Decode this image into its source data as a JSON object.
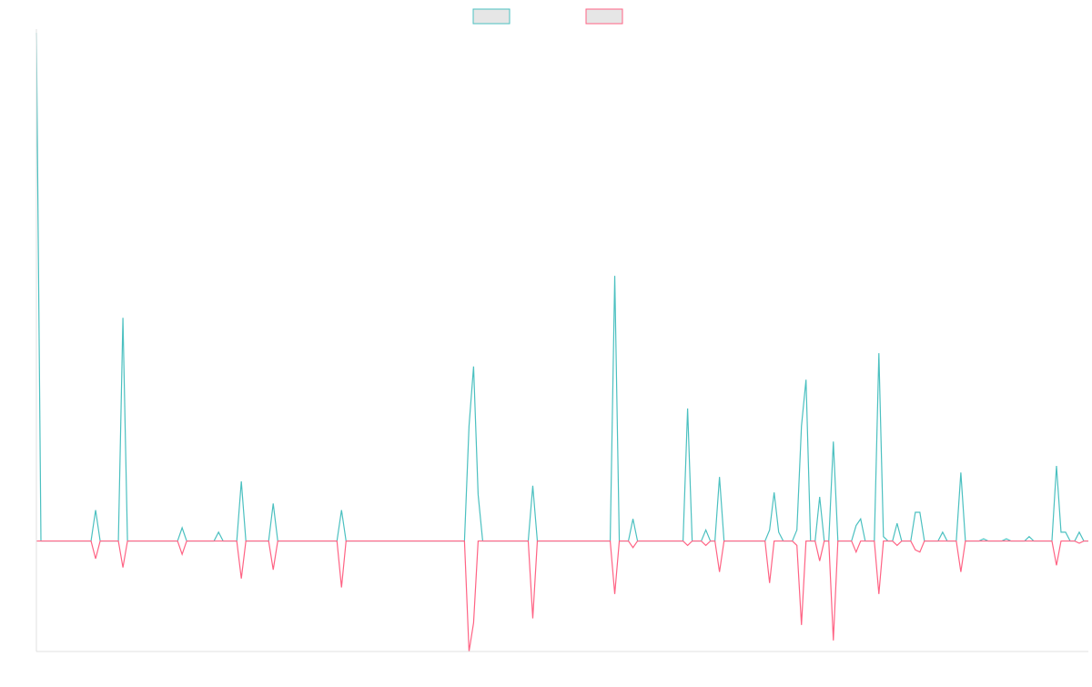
{
  "chart_data": {
    "type": "line",
    "title": "",
    "xlabel": "",
    "ylabel": "",
    "grid": false,
    "legend_placement": "top-center",
    "ylim": [
      -5,
      23
    ],
    "y_baseline": 0,
    "series": [
      {
        "color": "#4bc0c0",
        "fill": "#e6e6e6",
        "points": [
          [
            0,
            23
          ],
          [
            1,
            0
          ],
          [
            12,
            0
          ],
          [
            13,
            1.4
          ],
          [
            14,
            0
          ],
          [
            18,
            0
          ],
          [
            19,
            10.1
          ],
          [
            20,
            0
          ],
          [
            31,
            0
          ],
          [
            32,
            0.6
          ],
          [
            33,
            0
          ],
          [
            39,
            0
          ],
          [
            40,
            0.4
          ],
          [
            41,
            0
          ],
          [
            44,
            0
          ],
          [
            45,
            2.7
          ],
          [
            46,
            0
          ],
          [
            51,
            0
          ],
          [
            52,
            1.7
          ],
          [
            53,
            0
          ],
          [
            66,
            0
          ],
          [
            67,
            1.4
          ],
          [
            68,
            0
          ],
          [
            94,
            0
          ],
          [
            95,
            5.2
          ],
          [
            96,
            7.9
          ],
          [
            97,
            2.1
          ],
          [
            98,
            0
          ],
          [
            108,
            0
          ],
          [
            109,
            2.5
          ],
          [
            110,
            0
          ],
          [
            126,
            0
          ],
          [
            127,
            12.0
          ],
          [
            128,
            0
          ],
          [
            130,
            0
          ],
          [
            131,
            1.0
          ],
          [
            132,
            0
          ],
          [
            142,
            0
          ],
          [
            143,
            6.0
          ],
          [
            144,
            0
          ],
          [
            146,
            0
          ],
          [
            147,
            0.5
          ],
          [
            148,
            0
          ],
          [
            149,
            0
          ],
          [
            150,
            2.9
          ],
          [
            151,
            0
          ],
          [
            160,
            0
          ],
          [
            161,
            0.5
          ],
          [
            162,
            2.2
          ],
          [
            163,
            0.4
          ],
          [
            164,
            0
          ],
          [
            166,
            0
          ],
          [
            167,
            0.5
          ],
          [
            168,
            5.2
          ],
          [
            169,
            7.3
          ],
          [
            170,
            0
          ],
          [
            171,
            0
          ],
          [
            172,
            2.0
          ],
          [
            173,
            0
          ],
          [
            174,
            0
          ],
          [
            175,
            4.5
          ],
          [
            176,
            0
          ],
          [
            179,
            0
          ],
          [
            180,
            0.7
          ],
          [
            181,
            1.0
          ],
          [
            182,
            0
          ],
          [
            184,
            0
          ],
          [
            185,
            8.5
          ],
          [
            186,
            0.2
          ],
          [
            187,
            0
          ],
          [
            188,
            0
          ],
          [
            189,
            0.8
          ],
          [
            190,
            0
          ],
          [
            192,
            0
          ],
          [
            193,
            1.3
          ],
          [
            194,
            1.3
          ],
          [
            195,
            0
          ],
          [
            198,
            0
          ],
          [
            199,
            0.4
          ],
          [
            200,
            0
          ],
          [
            202,
            0
          ],
          [
            203,
            3.1
          ],
          [
            204,
            0
          ],
          [
            207,
            0
          ],
          [
            208,
            0.1
          ],
          [
            209,
            0
          ],
          [
            212,
            0
          ],
          [
            213,
            0.1
          ],
          [
            214,
            0
          ],
          [
            217,
            0
          ],
          [
            218,
            0.2
          ],
          [
            219,
            0
          ],
          [
            223,
            0
          ],
          [
            224,
            3.4
          ],
          [
            225,
            0.4
          ],
          [
            226,
            0.4
          ],
          [
            227,
            0
          ],
          [
            228,
            0
          ],
          [
            229,
            0.4
          ],
          [
            230,
            0
          ],
          [
            231,
            0
          ]
        ]
      },
      {
        "color": "#ff6384",
        "fill": "#e6e6e6",
        "points": [
          [
            0,
            0
          ],
          [
            12,
            0
          ],
          [
            13,
            -0.8
          ],
          [
            14,
            0
          ],
          [
            18,
            0
          ],
          [
            19,
            -1.2
          ],
          [
            20,
            0
          ],
          [
            31,
            0
          ],
          [
            32,
            -0.6
          ],
          [
            33,
            0
          ],
          [
            44,
            0
          ],
          [
            45,
            -1.7
          ],
          [
            46,
            0
          ],
          [
            51,
            0
          ],
          [
            52,
            -1.3
          ],
          [
            53,
            0
          ],
          [
            66,
            0
          ],
          [
            67,
            -2.1
          ],
          [
            68,
            0
          ],
          [
            94,
            0
          ],
          [
            95,
            -5.0
          ],
          [
            96,
            -3.7
          ],
          [
            97,
            0
          ],
          [
            108,
            0
          ],
          [
            109,
            -3.5
          ],
          [
            110,
            0
          ],
          [
            126,
            0
          ],
          [
            127,
            -2.4
          ],
          [
            128,
            0
          ],
          [
            130,
            0
          ],
          [
            131,
            -0.3
          ],
          [
            132,
            0
          ],
          [
            142,
            0
          ],
          [
            143,
            -0.2
          ],
          [
            144,
            0
          ],
          [
            146,
            0
          ],
          [
            147,
            -0.2
          ],
          [
            148,
            0
          ],
          [
            149,
            0
          ],
          [
            150,
            -1.4
          ],
          [
            151,
            0
          ],
          [
            160,
            0
          ],
          [
            161,
            -1.9
          ],
          [
            162,
            0
          ],
          [
            166,
            0
          ],
          [
            167,
            -0.2
          ],
          [
            168,
            -3.8
          ],
          [
            169,
            0
          ],
          [
            171,
            0
          ],
          [
            172,
            -0.9
          ],
          [
            173,
            0
          ],
          [
            174,
            0
          ],
          [
            175,
            -4.5
          ],
          [
            176,
            0
          ],
          [
            179,
            0
          ],
          [
            180,
            -0.5
          ],
          [
            181,
            0
          ],
          [
            184,
            0
          ],
          [
            185,
            -2.4
          ],
          [
            186,
            0
          ],
          [
            188,
            0
          ],
          [
            189,
            -0.2
          ],
          [
            190,
            0
          ],
          [
            192,
            0
          ],
          [
            193,
            -0.4
          ],
          [
            194,
            -0.5
          ],
          [
            195,
            0
          ],
          [
            202,
            0
          ],
          [
            203,
            -1.4
          ],
          [
            204,
            0
          ],
          [
            223,
            0
          ],
          [
            224,
            -1.1
          ],
          [
            225,
            0
          ],
          [
            228,
            0
          ],
          [
            229,
            -0.1
          ],
          [
            230,
            0
          ],
          [
            231,
            0
          ]
        ]
      }
    ]
  }
}
